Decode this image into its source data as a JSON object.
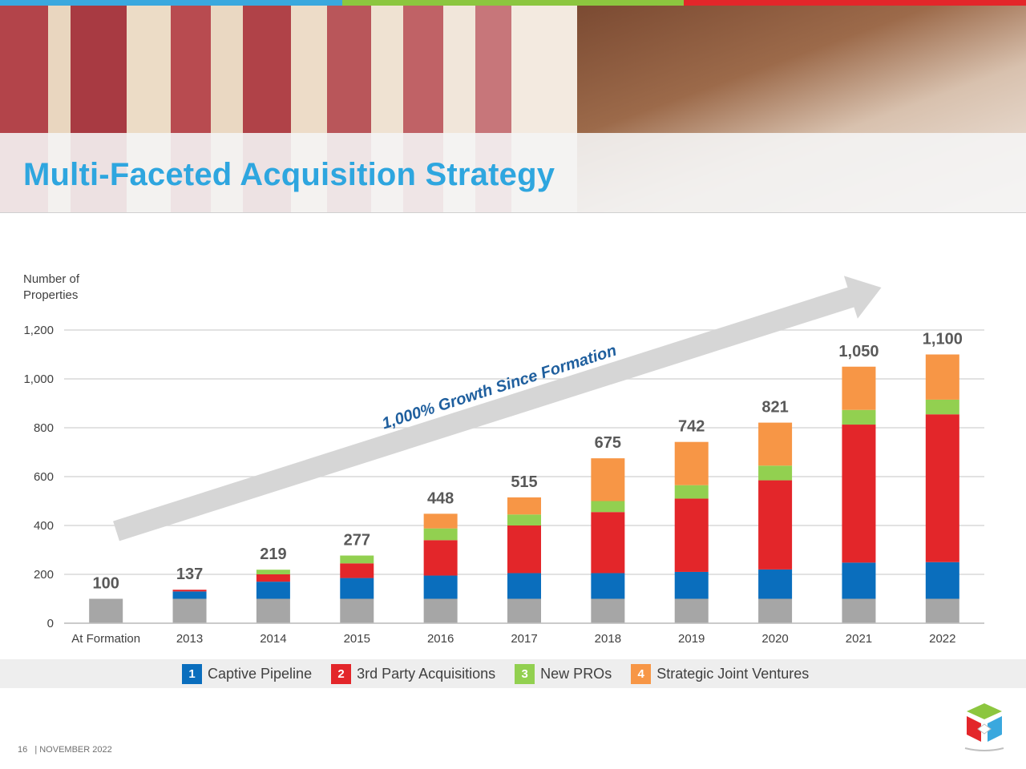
{
  "header": {
    "title": "Multi-Faceted Acquisition Strategy",
    "bar_colors": [
      "#3aa8de",
      "#8cc63f",
      "#e3262a"
    ]
  },
  "footer": {
    "page_number": "16",
    "date": "| NOVEMBER 2022"
  },
  "chart_data": {
    "type": "bar",
    "stacked": true,
    "ylabel": "Number of Properties",
    "xlabel": "",
    "ylim": [
      0,
      1200
    ],
    "yticks": [
      0,
      200,
      400,
      600,
      800,
      1000,
      1200
    ],
    "ytick_labels": [
      "0",
      "200",
      "400",
      "600",
      "800",
      "1,000",
      "1,200"
    ],
    "grid": true,
    "categories": [
      "At Formation",
      "2013",
      "2014",
      "2015",
      "2016",
      "2017",
      "2018",
      "2019",
      "2020",
      "2021",
      "2022"
    ],
    "series": [
      {
        "name": "",
        "color": "#a6a6a6",
        "values": [
          100,
          100,
          100,
          100,
          100,
          100,
          100,
          100,
          100,
          100,
          100
        ]
      },
      {
        "name": "Captive Pipeline",
        "color": "#0a6ebd",
        "values": [
          0,
          30,
          70,
          85,
          95,
          105,
          105,
          110,
          120,
          148,
          150
        ]
      },
      {
        "name": "3rd Party Acquisitions",
        "color": "#e3262a",
        "values": [
          0,
          7,
          30,
          60,
          145,
          195,
          250,
          300,
          365,
          565,
          605
        ]
      },
      {
        "name": "New PROs",
        "color": "#92d050",
        "values": [
          0,
          0,
          19,
          32,
          48,
          45,
          45,
          55,
          60,
          60,
          60
        ]
      },
      {
        "name": "Strategic Joint Ventures",
        "color": "#f79646",
        "values": [
          0,
          0,
          0,
          0,
          60,
          70,
          175,
          177,
          176,
          177,
          185
        ]
      }
    ],
    "totals": [
      100,
      137,
      219,
      277,
      448,
      515,
      675,
      742,
      821,
      1050,
      1100
    ],
    "total_labels": [
      "100",
      "137",
      "219",
      "277",
      "448",
      "515",
      "675",
      "742",
      "821",
      "1,050",
      "1,100"
    ],
    "annotation": "1,000% Growth Since Formation",
    "legend": {
      "placement": "bottom",
      "items": [
        {
          "number": "1",
          "label": "Captive Pipeline",
          "color": "#0a6ebd"
        },
        {
          "number": "2",
          "label": "3rd Party Acquisitions",
          "color": "#e3262a"
        },
        {
          "number": "3",
          "label": "New PROs",
          "color": "#92d050"
        },
        {
          "number": "4",
          "label": "Strategic Joint Ventures",
          "color": "#f79646"
        }
      ]
    }
  }
}
